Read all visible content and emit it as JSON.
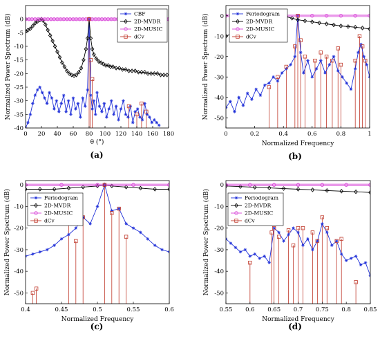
{
  "chart_data": [
    {
      "type": "line",
      "panel_label": "(a)",
      "xlabel": "θ (°)",
      "ylabel": "Normalized Power Spectrum (dB)",
      "xlim": [
        0,
        180
      ],
      "ylim": [
        -40,
        5
      ],
      "xticks": [
        0,
        20,
        40,
        60,
        80,
        100,
        120,
        140,
        160,
        180
      ],
      "yticks": [
        0,
        -5,
        -10,
        -15,
        -20,
        -25,
        -30,
        -35,
        -40
      ],
      "legend_position": "top-right",
      "series": [
        {
          "name": "CBF",
          "color": "#1f2fd8",
          "marker": "star",
          "x": [
            0,
            3,
            6,
            9,
            12,
            15,
            18,
            21,
            24,
            27,
            30,
            33,
            36,
            39,
            42,
            45,
            48,
            51,
            54,
            57,
            60,
            63,
            66,
            69,
            72,
            75,
            78,
            80,
            82,
            84,
            86,
            88,
            90,
            93,
            96,
            99,
            102,
            105,
            108,
            111,
            114,
            117,
            120,
            123,
            126,
            129,
            132,
            135,
            138,
            141,
            144,
            147,
            150,
            153,
            156,
            159,
            162,
            165,
            168
          ],
          "y": [
            -40,
            -38,
            -35,
            -31,
            -28,
            -26,
            -25,
            -27,
            -29,
            -31,
            -27,
            -29,
            -33,
            -30,
            -34,
            -31,
            -28,
            -34,
            -30,
            -35,
            -29,
            -33,
            -31,
            -36,
            -29,
            -32,
            -26,
            0,
            -28,
            -33,
            -30,
            -35,
            -27,
            -32,
            -34,
            -31,
            -36,
            -33,
            -30,
            -35,
            -32,
            -37,
            -33,
            -30,
            -35,
            -36,
            -32,
            -38,
            -34,
            -33,
            -36,
            -37,
            -31,
            -35,
            -36,
            -38,
            -37,
            -38,
            -39
          ]
        },
        {
          "name": "2D-MVDR",
          "color": "#000000",
          "marker": "diamond",
          "x": [
            0,
            3,
            6,
            9,
            12,
            15,
            18,
            20,
            22,
            25,
            28,
            31,
            34,
            37,
            40,
            43,
            46,
            49,
            52,
            55,
            58,
            61,
            64,
            67,
            70,
            73,
            76,
            78,
            80,
            82,
            84,
            86,
            89,
            92,
            95,
            98,
            101,
            104,
            107,
            110,
            114,
            118,
            122,
            126,
            130,
            134,
            138,
            142,
            146,
            150,
            154,
            158,
            162,
            166,
            170,
            174,
            178
          ],
          "y": [
            -4.5,
            -4,
            -3.5,
            -2.5,
            -1.5,
            -0.8,
            -0.3,
            0,
            -0.5,
            -2,
            -4,
            -6,
            -8,
            -10,
            -12,
            -14,
            -16,
            -17.5,
            -19,
            -20,
            -20.5,
            -20.8,
            -20.5,
            -19.5,
            -18,
            -15,
            -11,
            -7,
            0,
            -7,
            -11,
            -13,
            -14.5,
            -15.5,
            -16,
            -16.5,
            -17,
            -17,
            -17.5,
            -17.5,
            -18,
            -18,
            -18.5,
            -18.5,
            -19,
            -19,
            -19,
            -19.5,
            -19.5,
            -19.5,
            -20,
            -20,
            -20,
            -20,
            -20.5,
            -20.5,
            -20.5
          ]
        },
        {
          "name": "2D-MUSIC",
          "color": "#d845d8",
          "marker": "circle",
          "x": [
            0,
            4,
            8,
            12,
            16,
            20,
            24,
            28,
            32,
            36,
            40,
            44,
            48,
            52,
            56,
            60,
            64,
            68,
            72,
            76,
            80,
            84,
            88,
            92,
            96,
            100,
            104,
            108,
            112,
            116,
            120,
            124,
            128,
            132,
            136,
            140,
            144,
            148,
            152,
            156,
            160,
            164,
            168,
            172,
            176,
            180
          ],
          "y": [
            0,
            0,
            0,
            0,
            0,
            0,
            0,
            0,
            0,
            0,
            0,
            0,
            0,
            0,
            0,
            0,
            0,
            0,
            0,
            0,
            0,
            0,
            0,
            0,
            0,
            0,
            0,
            0,
            0,
            0,
            0,
            0,
            0,
            0,
            0,
            0,
            0,
            0,
            0,
            0,
            0,
            0,
            0,
            0,
            0,
            0
          ]
        },
        {
          "name": "dCv",
          "color": "#c0392b",
          "marker": "square",
          "x": [
            80,
            82,
            84,
            130,
            140,
            146,
            152
          ],
          "y": [
            0,
            -15,
            -22,
            -32,
            -35,
            -31,
            -34
          ]
        }
      ]
    },
    {
      "type": "line",
      "panel_label": "(b)",
      "xlabel": "Normalized Frequency",
      "ylabel": "Normalized Power Spectrum (dB)",
      "xlim": [
        0,
        1
      ],
      "ylim": [
        -55,
        5
      ],
      "xticks": [
        0,
        0.2,
        0.4,
        0.6,
        0.8,
        1
      ],
      "yticks": [
        0,
        -10,
        -20,
        -30,
        -40,
        -50
      ],
      "legend_position": "top-left",
      "series": [
        {
          "name": "Periodogram",
          "color": "#1f2fd8",
          "marker": "star",
          "x": [
            0,
            0.03,
            0.06,
            0.09,
            0.12,
            0.15,
            0.18,
            0.21,
            0.24,
            0.27,
            0.3,
            0.33,
            0.36,
            0.39,
            0.42,
            0.45,
            0.48,
            0.5,
            0.52,
            0.54,
            0.57,
            0.6,
            0.63,
            0.66,
            0.69,
            0.72,
            0.75,
            0.78,
            0.81,
            0.84,
            0.87,
            0.9,
            0.92,
            0.94,
            0.96,
            0.98,
            1.0
          ],
          "y": [
            -45,
            -42,
            -47,
            -40,
            -44,
            -38,
            -41,
            -36,
            -39,
            -34,
            -33,
            -30,
            -32,
            -28,
            -26,
            -24,
            -20,
            0,
            -18,
            -28,
            -22,
            -30,
            -26,
            -22,
            -28,
            -24,
            -20,
            -27,
            -30,
            -33,
            -36,
            -26,
            -18,
            -14,
            -20,
            -24,
            -30
          ]
        },
        {
          "name": "2D-MVDR",
          "color": "#000000",
          "marker": "diamond",
          "x": [
            0,
            0.05,
            0.1,
            0.15,
            0.2,
            0.25,
            0.3,
            0.35,
            0.38,
            0.42,
            0.46,
            0.5,
            0.55,
            0.6,
            0.65,
            0.7,
            0.75,
            0.8,
            0.85,
            0.9,
            0.95,
            1.0
          ],
          "y": [
            -10,
            -8.5,
            -7,
            -5.5,
            -4,
            -2.5,
            -1,
            0,
            0,
            -0.5,
            -1.2,
            -2,
            -2.5,
            -3,
            -3.5,
            -4,
            -4.5,
            -5,
            -5.3,
            -5.6,
            -6,
            -6.5
          ]
        },
        {
          "name": "2D-MUSIC",
          "color": "#d845d8",
          "marker": "circle",
          "x": [
            0,
            0.1,
            0.2,
            0.3,
            0.4,
            0.5,
            0.6,
            0.7,
            0.8,
            0.9,
            1.0
          ],
          "y": [
            0,
            0,
            0,
            0,
            0,
            0,
            0,
            0,
            0,
            0,
            0
          ]
        },
        {
          "name": "dCv",
          "color": "#c0392b",
          "marker": "square",
          "x": [
            0.3,
            0.36,
            0.42,
            0.48,
            0.5,
            0.52,
            0.55,
            0.62,
            0.66,
            0.7,
            0.74,
            0.78,
            0.8,
            0.9,
            0.93,
            0.95,
            0.97
          ],
          "y": [
            -35,
            -30,
            -25,
            -15,
            0,
            -12,
            -20,
            -22,
            -18,
            -20,
            -22,
            -16,
            -24,
            -22,
            -10,
            -15,
            -22
          ]
        }
      ]
    },
    {
      "type": "line",
      "panel_label": "(c)",
      "xlabel": "Normalized Frequency",
      "ylabel": "Normalized Power Spectrum (dB)",
      "xlim": [
        0.4,
        0.6
      ],
      "ylim": [
        -55,
        2
      ],
      "xticks": [
        0.4,
        0.45,
        0.5,
        0.55,
        0.6
      ],
      "yticks": [
        0,
        -10,
        -20,
        -30,
        -40,
        -50
      ],
      "legend_position": "top-left",
      "series": [
        {
          "name": "Periodogram",
          "color": "#1f2fd8",
          "marker": "star",
          "x": [
            0.4,
            0.41,
            0.42,
            0.43,
            0.44,
            0.45,
            0.46,
            0.47,
            0.48,
            0.49,
            0.5,
            0.51,
            0.52,
            0.53,
            0.54,
            0.55,
            0.56,
            0.57,
            0.58,
            0.59,
            0.6
          ],
          "y": [
            -33,
            -32,
            -31,
            -30,
            -28,
            -25,
            -23,
            -20,
            -15,
            -18,
            -10,
            0,
            -12,
            -11,
            -18,
            -20,
            -22,
            -25,
            -28,
            -30,
            -31
          ]
        },
        {
          "name": "2D-MVDR",
          "color": "#000000",
          "marker": "diamond",
          "x": [
            0.4,
            0.42,
            0.44,
            0.46,
            0.48,
            0.5,
            0.51,
            0.52,
            0.54,
            0.56,
            0.58,
            0.6
          ],
          "y": [
            -2,
            -2,
            -2,
            -1.5,
            -1,
            -0.5,
            0,
            -0.5,
            -1,
            -1.5,
            -2,
            -2
          ]
        },
        {
          "name": "2D-MUSIC",
          "color": "#d845d8",
          "marker": "circle",
          "x": [
            0.4,
            0.45,
            0.5,
            0.55,
            0.6
          ],
          "y": [
            0,
            0,
            0,
            0,
            0
          ]
        },
        {
          "name": "dCv",
          "color": "#c0392b",
          "marker": "square",
          "x": [
            0.41,
            0.415,
            0.46,
            0.47,
            0.48,
            0.51,
            0.52,
            0.53,
            0.54
          ],
          "y": [
            -50,
            -48,
            -12,
            -26,
            -15,
            0,
            -13,
            -11,
            -24
          ]
        }
      ]
    },
    {
      "type": "line",
      "panel_label": "(d)",
      "xlabel": "Normalized Frequency",
      "ylabel": "Normalized Power Spectrum (dB)",
      "xlim": [
        0.55,
        0.85
      ],
      "ylim": [
        -55,
        2
      ],
      "xticks": [
        0.55,
        0.6,
        0.65,
        0.7,
        0.75,
        0.8,
        0.85
      ],
      "yticks": [
        0,
        -10,
        -20,
        -30,
        -40,
        -50
      ],
      "legend_position": "top-left",
      "series": [
        {
          "name": "Periodogram",
          "color": "#1f2fd8",
          "marker": "star",
          "x": [
            0.55,
            0.56,
            0.57,
            0.58,
            0.59,
            0.6,
            0.61,
            0.62,
            0.63,
            0.64,
            0.65,
            0.66,
            0.67,
            0.68,
            0.69,
            0.7,
            0.71,
            0.72,
            0.73,
            0.74,
            0.75,
            0.76,
            0.77,
            0.78,
            0.79,
            0.8,
            0.81,
            0.82,
            0.83,
            0.84,
            0.85
          ],
          "y": [
            -25,
            -27,
            -29,
            -31,
            -30,
            -33,
            -32,
            -34,
            -33,
            -36,
            -20,
            -22,
            -26,
            -23,
            -20,
            -22,
            -28,
            -25,
            -30,
            -26,
            -18,
            -22,
            -28,
            -26,
            -32,
            -35,
            -34,
            -33,
            -37,
            -36,
            -42
          ]
        },
        {
          "name": "2D-MVDR",
          "color": "#000000",
          "marker": "diamond",
          "x": [
            0.55,
            0.58,
            0.61,
            0.64,
            0.67,
            0.7,
            0.73,
            0.76,
            0.79,
            0.82,
            0.85
          ],
          "y": [
            -0.5,
            -0.8,
            -1.1,
            -1.4,
            -1.7,
            -2,
            -2.3,
            -2.6,
            -2.9,
            -3.2,
            -3.5
          ]
        },
        {
          "name": "2D-MUSIC",
          "color": "#d845d8",
          "marker": "circle",
          "x": [
            0.55,
            0.6,
            0.65,
            0.7,
            0.75,
            0.8,
            0.85
          ],
          "y": [
            0,
            0,
            0,
            0,
            0,
            0,
            0
          ]
        },
        {
          "name": "dCv",
          "color": "#c0392b",
          "marker": "square",
          "x": [
            0.6,
            0.645,
            0.65,
            0.66,
            0.68,
            0.69,
            0.7,
            0.71,
            0.73,
            0.74,
            0.75,
            0.76,
            0.78,
            0.79,
            0.82
          ],
          "y": [
            -36,
            -22,
            -20,
            -24,
            -21,
            -28,
            -20,
            -20,
            -22,
            -26,
            -15,
            -20,
            -26,
            -25,
            -45
          ]
        }
      ]
    }
  ]
}
